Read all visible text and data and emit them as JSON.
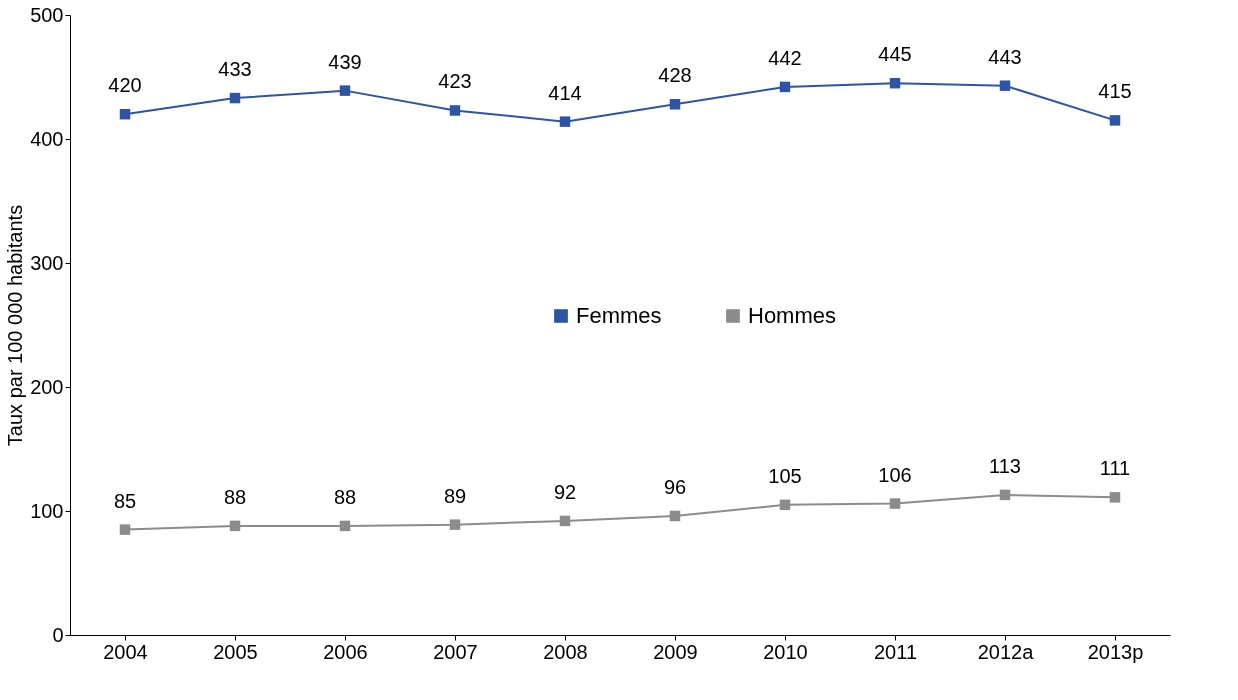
{
  "chart_data": {
    "type": "line",
    "ylabel": "Taux par 100 000 habitants",
    "categories": [
      "2004",
      "2005",
      "2006",
      "2007",
      "2008",
      "2009",
      "2010",
      "2011",
      "2012a",
      "2013p"
    ],
    "series": [
      {
        "name": "Femmes",
        "color": "#2e54a4",
        "values": [
          420,
          433,
          439,
          423,
          414,
          428,
          442,
          445,
          443,
          415
        ]
      },
      {
        "name": "Hommes",
        "color": "#8c8c8c",
        "values": [
          85,
          88,
          88,
          89,
          92,
          96,
          105,
          106,
          113,
          111
        ]
      }
    ],
    "ylim": [
      0,
      500
    ],
    "yticks": [
      0,
      100,
      200,
      300,
      400,
      500
    ],
    "marker": "square",
    "data_labels": true,
    "grid": false,
    "legend": "center"
  }
}
